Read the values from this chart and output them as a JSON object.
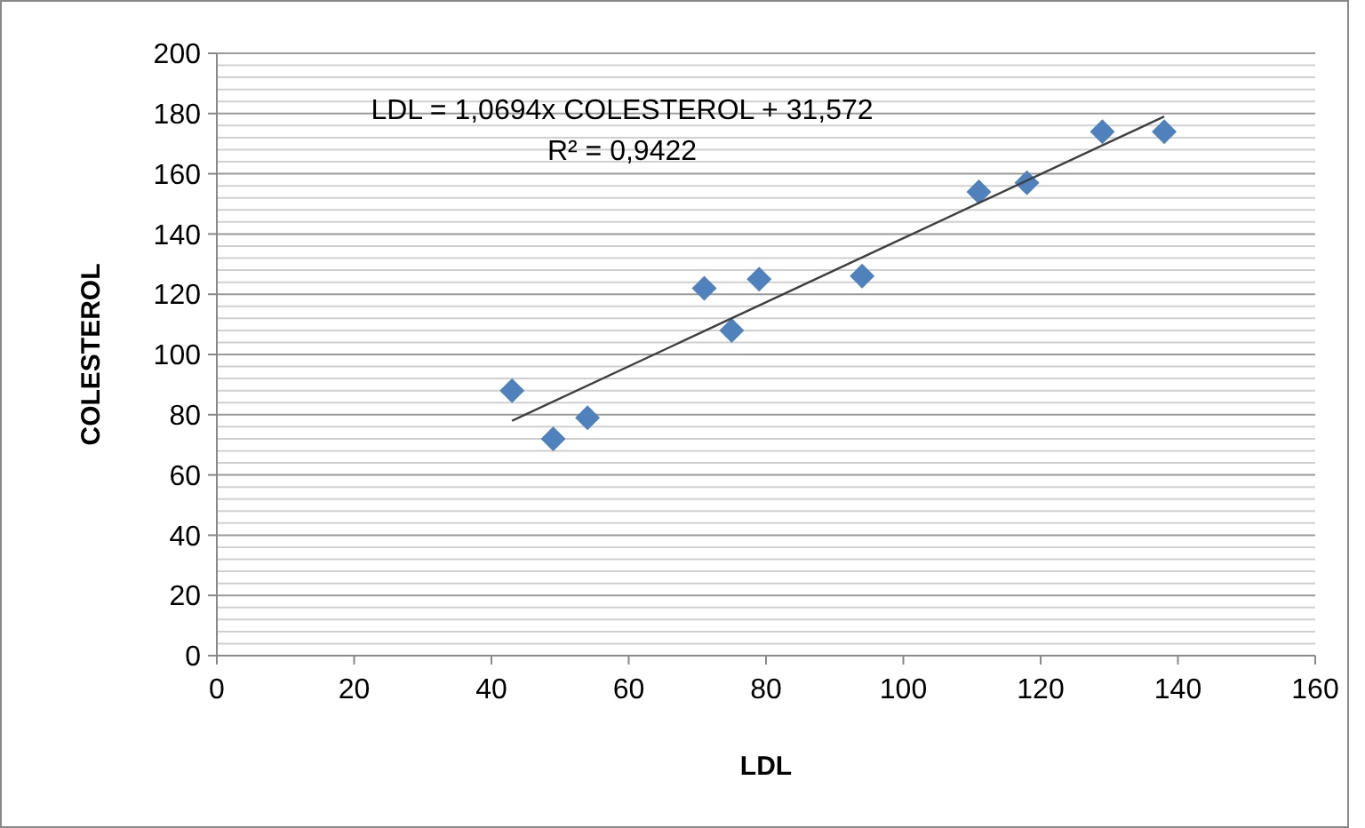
{
  "chart_data": {
    "type": "scatter",
    "xlabel": "LDL",
    "ylabel": "COLESTEROL",
    "xlim": [
      0,
      160
    ],
    "xticks": [
      0,
      20,
      40,
      60,
      80,
      100,
      120,
      140,
      160
    ],
    "ylim": [
      0,
      200
    ],
    "yticks": [
      0,
      20,
      40,
      60,
      80,
      100,
      120,
      140,
      160,
      180,
      200
    ],
    "grid": "y",
    "annotations": [
      "LDL = 1,0694x COLESTEROL + 31,572",
      "R² = 0,9422"
    ],
    "series": [
      {
        "color": "#4f81bd",
        "marker": "diamond",
        "x": [
          43,
          49,
          54,
          71,
          75,
          79,
          94,
          111,
          118,
          129,
          138
        ],
        "values": [
          88,
          72,
          79,
          122,
          108,
          125,
          126,
          154,
          157,
          174,
          174
        ]
      },
      {
        "type": "line",
        "color": "#404040",
        "x": [
          43,
          138
        ],
        "values": [
          78,
          179
        ]
      }
    ]
  }
}
